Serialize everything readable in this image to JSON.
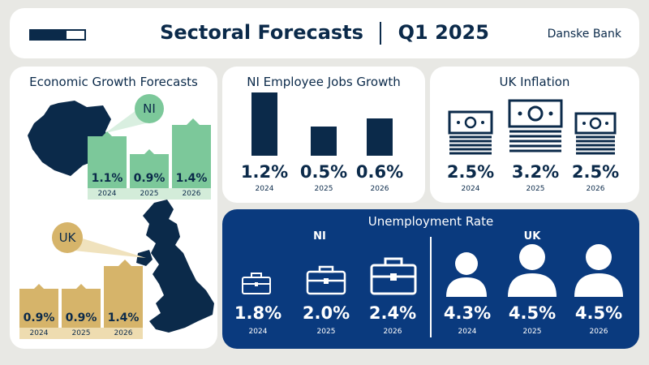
{
  "header": {
    "title": "Sectoral Forecasts",
    "quarter": "Q1 2025",
    "brand": "Danske Bank"
  },
  "economic_growth": {
    "title": "Economic Growth Forecasts",
    "ni": {
      "label": "NI",
      "color": "#7cc89a",
      "items": [
        {
          "value": "1.1%",
          "year": "2024"
        },
        {
          "value": "0.9%",
          "year": "2025"
        },
        {
          "value": "1.4%",
          "year": "2026"
        }
      ]
    },
    "uk": {
      "label": "UK",
      "color": "#d6b46a",
      "items": [
        {
          "value": "0.9%",
          "year": "2024"
        },
        {
          "value": "0.9%",
          "year": "2025"
        },
        {
          "value": "1.4%",
          "year": "2026"
        }
      ]
    }
  },
  "ni_jobs": {
    "title": "NI Employee Jobs Growth",
    "items": [
      {
        "value": "1.2%",
        "year": "2024"
      },
      {
        "value": "0.5%",
        "year": "2025"
      },
      {
        "value": "0.6%",
        "year": "2026"
      }
    ]
  },
  "uk_inflation": {
    "title": "UK Inflation",
    "items": [
      {
        "value": "2.5%",
        "year": "2024"
      },
      {
        "value": "3.2%",
        "year": "2025"
      },
      {
        "value": "2.5%",
        "year": "2026"
      }
    ]
  },
  "unemployment": {
    "title": "Unemployment Rate",
    "ni": {
      "label": "NI",
      "items": [
        {
          "value": "1.8%",
          "year": "2024"
        },
        {
          "value": "2.0%",
          "year": "2025"
        },
        {
          "value": "2.4%",
          "year": "2026"
        }
      ]
    },
    "uk": {
      "label": "UK",
      "items": [
        {
          "value": "4.3%",
          "year": "2024"
        },
        {
          "value": "4.5%",
          "year": "2025"
        },
        {
          "value": "4.5%",
          "year": "2026"
        }
      ]
    }
  },
  "colors": {
    "navy": "#0b2a4a",
    "royal": "#0a3a7e",
    "green": "#7cc89a",
    "gold": "#d6b46a",
    "background": "#e8e8e4"
  }
}
